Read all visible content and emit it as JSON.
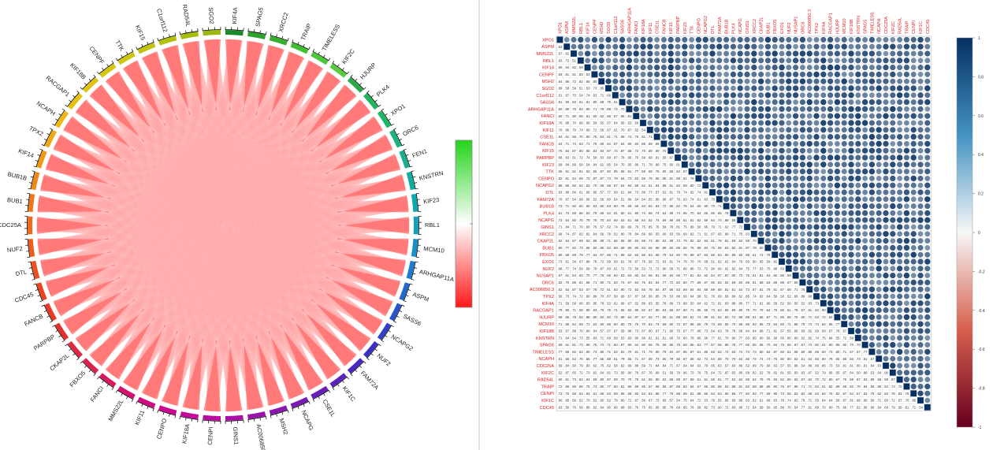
{
  "chart_data": [
    {
      "type": "chord",
      "genes": [
        "KIF4A",
        "SPAG5",
        "XRCC2",
        "TRAIP",
        "TIMELESS",
        "KIF2C",
        "HJURP",
        "PLK4",
        "XPO1",
        "ORC6",
        "FEN1",
        "KNSTRN",
        "KIF23",
        "RBL1",
        "MCM10",
        "ARHGAP11A",
        "ASPM",
        "SASS6",
        "NCAPG2",
        "NUF2",
        "FAM72A",
        "KIF1C",
        "CSE1L",
        "NCAPG",
        "MSH2",
        "AC006850.3",
        "GINS1",
        "CENPI",
        "KIF18A",
        "CENPO",
        "KIF11",
        "MMS22L",
        "FANCI",
        "FBXO5",
        "CKAP2L",
        "PARPBP",
        "FANCB",
        "CDC45",
        "DTL",
        "NUF2",
        "CDC25A",
        "BUB1",
        "BUB1B",
        "KIF14",
        "TPX2",
        "NCAPH",
        "RACGAP1",
        "KIF18B",
        "CENPF",
        "TTK",
        "KIF15",
        "C1orf112",
        "RAD54L",
        "SGO2"
      ],
      "arc_colors": [
        "#1b8a2a",
        "#2ea02c",
        "#36b02c",
        "#40c030",
        "#4cc83a",
        "#58cc3e",
        "#2aa84c",
        "#22b45a",
        "#1cb86a",
        "#19b47c",
        "#16b08c",
        "#13aca0",
        "#10a8b0",
        "#13a0c0",
        "#1890cc",
        "#1c7cd0",
        "#2268d0",
        "#2a54cc",
        "#3140c8",
        "#3a30c4",
        "#4a28c0",
        "#5a24bc",
        "#6a20b8",
        "#7a1cb4",
        "#8a18b0",
        "#9a14ac",
        "#aa10a8",
        "#b80ca0",
        "#c40898",
        "#cc0690",
        "#d00a80",
        "#d41070",
        "#d81860",
        "#dc2050",
        "#e02840",
        "#e43030",
        "#e83a24",
        "#ec4420",
        "#ee5020",
        "#f05c1e",
        "#f06a1c",
        "#f0781a",
        "#f08818",
        "#f09816",
        "#f0a814",
        "#f0b812",
        "#e8c010",
        "#e0c410",
        "#d8c610",
        "#ccc60e",
        "#c0c40c",
        "#b4c00c",
        "#a8bc0c",
        "#9cb80c"
      ],
      "color_scale": {
        "top": "#22d41a",
        "middle": "#ffffff",
        "bottom": "#ff1818"
      },
      "ribbon_color": "#ff5858"
    },
    {
      "type": "heatmap",
      "genes": [
        "XPO1",
        "ASPM",
        "MMS22L",
        "RBL1",
        "KIF14",
        "CENPF",
        "MSH2",
        "SGO2",
        "C1orf112",
        "SASS6",
        "ARHGAP11A",
        "FANCI",
        "KIF18A",
        "KIF11",
        "CSE1L",
        "FANCB",
        "KIF15",
        "PARPBP",
        "KIF23",
        "TTK",
        "CENPO",
        "NCAPG2",
        "DTL",
        "FAM72A",
        "BUB1B",
        "PLK4",
        "NCAPG",
        "GINS1",
        "XRCC2",
        "CKAP2L",
        "BUB1",
        "FBXO5",
        "EXO1",
        "NUF2",
        "NUSAP1",
        "ORC6",
        "AC006850.3",
        "TPX2",
        "KIF4A",
        "RACGAP1",
        "HJURP",
        "MCM10",
        "KIF18B",
        "KNSTRN",
        "SPAG5",
        "TIMELESS",
        "NCAPH",
        "CDC25A",
        "KIF2C",
        "RAD54L",
        "TRAIP",
        "CENPI",
        "KIF1C",
        "CDC45"
      ],
      "scale_ticks": [
        "1",
        "0.8",
        "0.6",
        "0.4",
        "0.2",
        "0",
        "-0.2",
        "-0.4",
        "-0.6",
        "-0.8",
        "-1"
      ],
      "color_scale": {
        "high": "#053061",
        "mid": "#f7f7f7",
        "low": "#67001f"
      },
      "correlation_range": [
        0.5,
        0.9
      ],
      "label_color": "#e31a1c"
    }
  ]
}
